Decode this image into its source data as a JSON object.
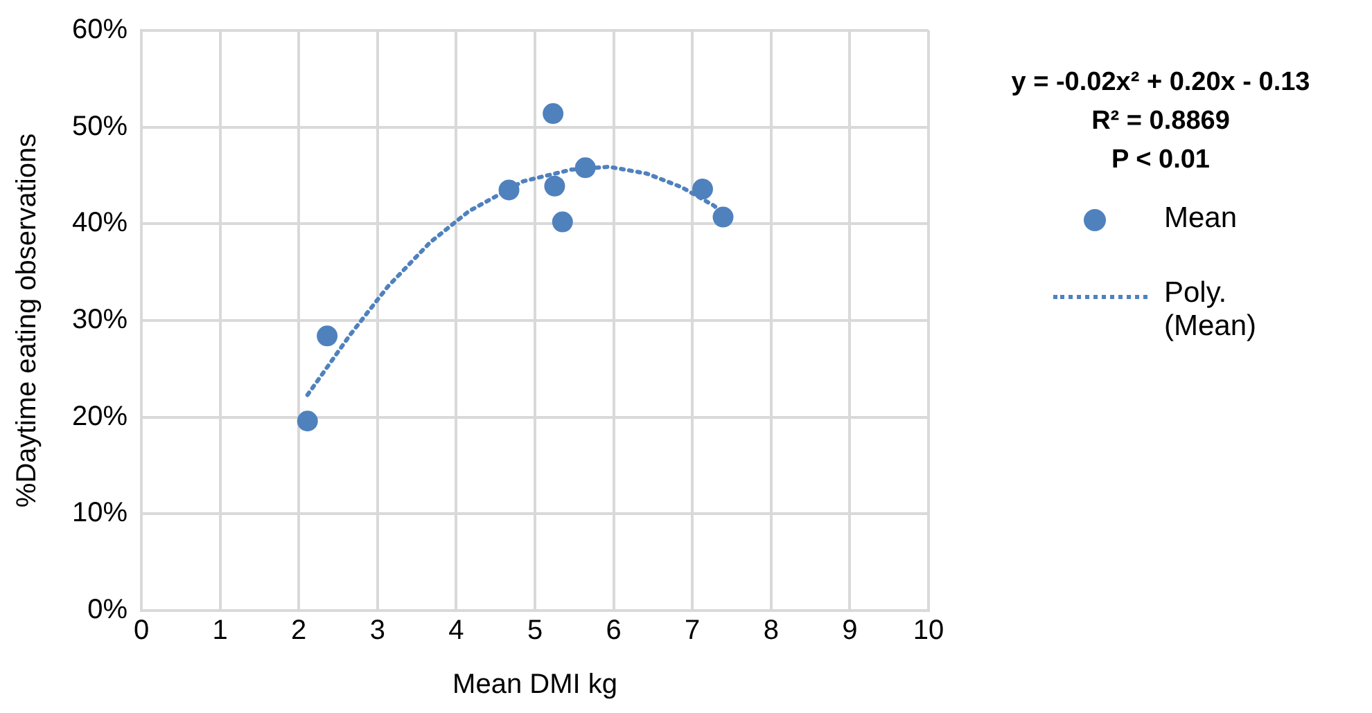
{
  "chart_data": {
    "type": "scatter",
    "xlabel": "Mean DMI kg",
    "ylabel": "%Daytime eating observations",
    "xlim": [
      0,
      10
    ],
    "xticks": [
      0,
      1,
      2,
      3,
      4,
      5,
      6,
      7,
      8,
      9,
      10
    ],
    "ylim": [
      0,
      60
    ],
    "yticks": [
      {
        "value": 0,
        "label": "0%"
      },
      {
        "value": 10,
        "label": "10%"
      },
      {
        "value": 20,
        "label": "20%"
      },
      {
        "value": 30,
        "label": "30%"
      },
      {
        "value": 40,
        "label": "40%"
      },
      {
        "value": 50,
        "label": "50%"
      },
      {
        "value": 60,
        "label": "60%"
      }
    ],
    "grid": true,
    "legend": "right",
    "marker": "circle",
    "annotations": [
      "y = -0.02x² + 0.20x - 0.13",
      "R² = 0.8869",
      "P < 0.01"
    ],
    "series": [
      {
        "name": "Mean",
        "color": "#4f81bd",
        "x": [
          2.11,
          2.36,
          5.23,
          4.67,
          5.25,
          5.35,
          5.64,
          7.13,
          7.39
        ],
        "values": [
          19.6,
          28.4,
          51.4,
          43.5,
          43.9,
          40.2,
          45.8,
          43.6,
          40.7
        ]
      },
      {
        "name": "Poly. (Mean)",
        "type": "line",
        "color": "#4f81bd",
        "marker": "none",
        "line_style": "dotted",
        "x": [
          2.11,
          2.65,
          3.13,
          3.67,
          4.16,
          4.85,
          5.46,
          5.94,
          6.42,
          6.86,
          7.27,
          7.36
        ],
        "values": [
          22.3,
          28.5,
          33.5,
          38.1,
          41.3,
          44.4,
          45.6,
          45.9,
          45.2,
          43.8,
          41.9,
          41.3
        ]
      }
    ]
  }
}
